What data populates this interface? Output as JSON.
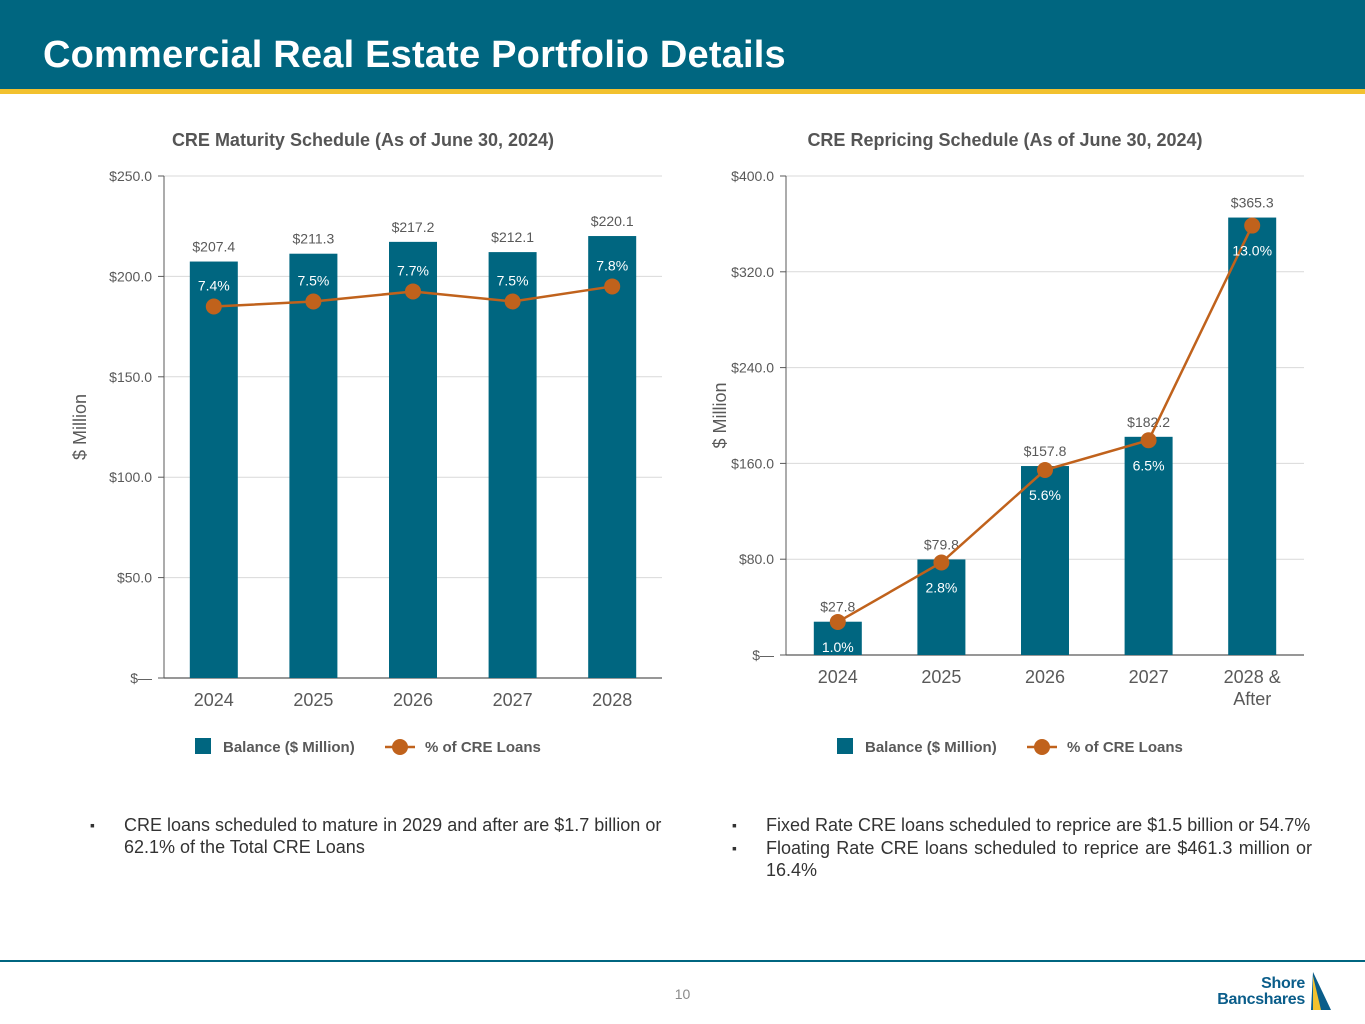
{
  "header": {
    "title": "Commercial Real Estate Portfolio Details",
    "bg_color": "#006680",
    "stripe_color": "#f2c12e"
  },
  "chart_data": [
    {
      "id": "maturity",
      "type": "bar+line",
      "title": "CRE Maturity Schedule (As of June 30, 2024)",
      "ylabel": "$ Million",
      "categories": [
        "2024",
        "2025",
        "2026",
        "2027",
        "2028"
      ],
      "yticks": [
        "$—",
        "$50.0",
        "$100.0",
        "$150.0",
        "$200.0",
        "$250.0"
      ],
      "ylim": [
        0,
        250
      ],
      "series": [
        {
          "name": "Balance ($ Million)",
          "type": "bar",
          "values": [
            207.4,
            211.3,
            217.2,
            212.1,
            220.1
          ],
          "labels": [
            "$207.4",
            "$211.3",
            "$217.2",
            "$212.1",
            "$220.1"
          ],
          "color": "#006680"
        },
        {
          "name": "% of CRE Loans",
          "type": "line",
          "values": [
            7.4,
            7.5,
            7.7,
            7.5,
            7.8
          ],
          "labels": [
            "7.4%",
            "7.5%",
            "7.7%",
            "7.5%",
            "7.8%"
          ],
          "color": "#c0621c"
        }
      ],
      "legend": "bottom"
    },
    {
      "id": "repricing",
      "type": "bar+line",
      "title": "CRE Repricing Schedule (As of June 30, 2024)",
      "ylabel": "$ Million",
      "categories": [
        "2024",
        "2025",
        "2026",
        "2027",
        "2028 & After"
      ],
      "yticks": [
        "$—",
        "$80.0",
        "$160.0",
        "$240.0",
        "$320.0",
        "$400.0"
      ],
      "ylim": [
        0,
        400
      ],
      "series": [
        {
          "name": "Balance ($ Million)",
          "type": "bar",
          "values": [
            27.8,
            79.8,
            157.8,
            182.2,
            365.3
          ],
          "labels": [
            "$27.8",
            "$79.8",
            "$157.8",
            "$182.2",
            "$365.3"
          ],
          "color": "#006680"
        },
        {
          "name": "% of CRE Loans",
          "type": "line",
          "values": [
            1.0,
            2.8,
            5.6,
            6.5,
            13.0
          ],
          "labels": [
            "1.0%",
            "2.8%",
            "5.6%",
            "6.5%",
            "13.0%"
          ],
          "color": "#c0621c"
        }
      ],
      "legend": "bottom"
    }
  ],
  "bullets_left": [
    "CRE loans scheduled to mature in 2029 and after are $1.7 billion or 62.1% of the Total CRE Loans"
  ],
  "bullets_right": [
    "Fixed Rate CRE loans scheduled to reprice are $1.5 billion or 54.7%",
    "Floating Rate CRE loans scheduled to reprice are $461.3 million or 16.4%"
  ],
  "footer": {
    "page_number": "10",
    "logo_line1": "Shore",
    "logo_line2": "Bancshares"
  }
}
